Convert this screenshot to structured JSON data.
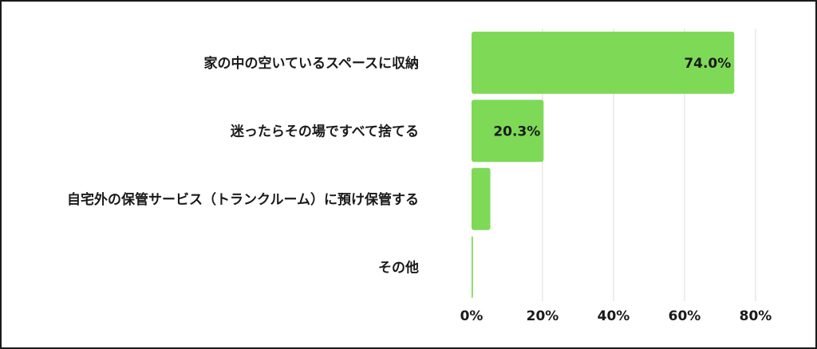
{
  "chart_data": {
    "type": "bar",
    "orientation": "horizontal",
    "categories": [
      "家の中の空いているスペースに収納",
      "迷ったらその場ですべて捨てる",
      "自宅外の保管サービス（トランクルーム）に預け保管する",
      "その他"
    ],
    "values": [
      74.0,
      20.3,
      5.3,
      0.4
    ],
    "data_labels": [
      "74.0%",
      "20.3%",
      "",
      ""
    ],
    "xlim": [
      0,
      80
    ],
    "x_ticks": [
      0,
      20,
      40,
      60,
      80
    ],
    "x_tick_labels": [
      "0%",
      "20%",
      "40%",
      "60%",
      "80%"
    ],
    "grid": true,
    "bar_color": "#7ed957",
    "grid_color": "#dcdcdc"
  }
}
